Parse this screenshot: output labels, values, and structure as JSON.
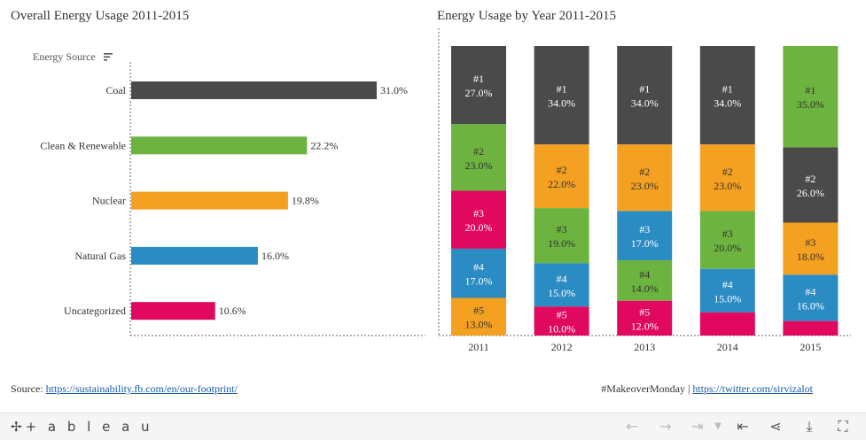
{
  "titles": {
    "left": "Overall Energy Usage 2011-2015",
    "right": "Energy Usage by Year 2011-2015"
  },
  "colors": {
    "Coal": "#4a4a4a",
    "Clean & Renewable": "#6db33f",
    "Nuclear": "#f4a021",
    "Natural Gas": "#2b8cc4",
    "Uncategorized": "#e0085f"
  },
  "chart_data": [
    {
      "type": "bar",
      "orientation": "horizontal",
      "title": "Overall Energy Usage 2011-2015",
      "axis_header": "Energy Source",
      "categories": [
        "Coal",
        "Clean & Renewable",
        "Nuclear",
        "Natural Gas",
        "Uncategorized"
      ],
      "values": [
        31.0,
        22.2,
        19.8,
        16.0,
        10.6
      ],
      "labels": [
        "31.0%",
        "22.2%",
        "19.8%",
        "16.0%",
        "10.6%"
      ],
      "xlim": [
        0,
        33
      ]
    },
    {
      "type": "bar",
      "stacked": true,
      "title": "Energy Usage by Year 2011-2015",
      "categories": [
        "2011",
        "2012",
        "2013",
        "2014",
        "2015"
      ],
      "stacks": [
        [
          {
            "source": "Coal",
            "value": 27,
            "rank": "#1",
            "label": "27.0%"
          },
          {
            "source": "Clean & Renewable",
            "value": 23,
            "rank": "#2",
            "label": "23.0%"
          },
          {
            "source": "Uncategorized",
            "value": 20,
            "rank": "#3",
            "label": "20.0%"
          },
          {
            "source": "Natural Gas",
            "value": 17,
            "rank": "#4",
            "label": "17.0%"
          },
          {
            "source": "Nuclear",
            "value": 13,
            "rank": "#5",
            "label": "13.0%"
          }
        ],
        [
          {
            "source": "Coal",
            "value": 34,
            "rank": "#1",
            "label": "34.0%"
          },
          {
            "source": "Nuclear",
            "value": 22,
            "rank": "#2",
            "label": "22.0%"
          },
          {
            "source": "Clean & Renewable",
            "value": 19,
            "rank": "#3",
            "label": "19.0%"
          },
          {
            "source": "Natural Gas",
            "value": 15,
            "rank": "#4",
            "label": "15.0%"
          },
          {
            "source": "Uncategorized",
            "value": 10,
            "rank": "#5",
            "label": "10.0%"
          }
        ],
        [
          {
            "source": "Coal",
            "value": 34,
            "rank": "#1",
            "label": "34.0%"
          },
          {
            "source": "Nuclear",
            "value": 23,
            "rank": "#2",
            "label": "23.0%"
          },
          {
            "source": "Natural Gas",
            "value": 17,
            "rank": "#3",
            "label": "17.0%"
          },
          {
            "source": "Clean & Renewable",
            "value": 14,
            "rank": "#4",
            "label": "14.0%"
          },
          {
            "source": "Uncategorized",
            "value": 12,
            "rank": "#5",
            "label": "12.0%"
          }
        ],
        [
          {
            "source": "Coal",
            "value": 34,
            "rank": "#1",
            "label": "34.0%"
          },
          {
            "source": "Nuclear",
            "value": 23,
            "rank": "#2",
            "label": "23.0%"
          },
          {
            "source": "Clean & Renewable",
            "value": 20,
            "rank": "#3",
            "label": "20.0%"
          },
          {
            "source": "Natural Gas",
            "value": 15,
            "rank": "#4",
            "label": "15.0%"
          },
          {
            "source": "Uncategorized",
            "value": 8,
            "rank": "",
            "label": ""
          }
        ],
        [
          {
            "source": "Clean & Renewable",
            "value": 35,
            "rank": "#1",
            "label": "35.0%"
          },
          {
            "source": "Coal",
            "value": 26,
            "rank": "#2",
            "label": "26.0%"
          },
          {
            "source": "Nuclear",
            "value": 18,
            "rank": "#3",
            "label": "18.0%"
          },
          {
            "source": "Natural Gas",
            "value": 16,
            "rank": "#4",
            "label": "16.0%"
          },
          {
            "source": "Uncategorized",
            "value": 5,
            "rank": "",
            "label": ""
          }
        ]
      ],
      "ylim": [
        0,
        100
      ]
    }
  ],
  "footer": {
    "source_prefix": "Source: ",
    "source_link": "https://sustainability.fb.com/en/our-footprint/",
    "hashtag": "#MakeoverMonday",
    "separator": " | ",
    "twitter_link": "https://twitter.com/sirvizalot"
  },
  "toolbar": {
    "logo": "+ a b l e a u",
    "icons": [
      "undo-icon",
      "redo-icon",
      "revert-icon",
      "revert-menu-icon",
      "reset-icon",
      "share-icon",
      "download-icon",
      "fullscreen-icon"
    ]
  }
}
